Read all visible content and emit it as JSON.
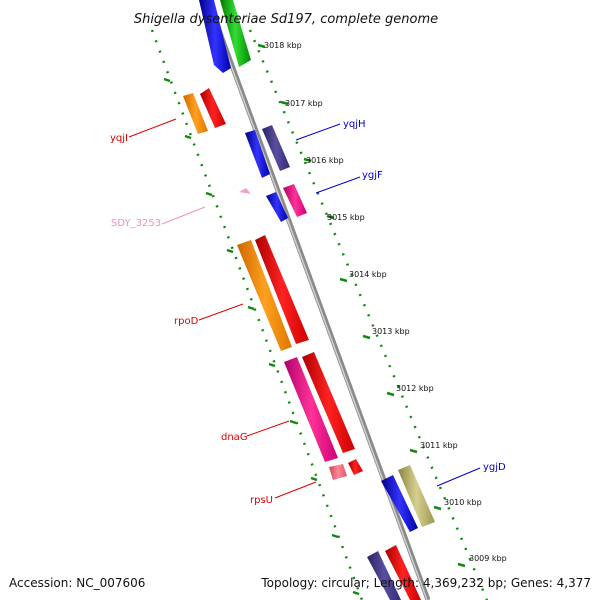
{
  "title": "Shigella dysenteriae Sd197, complete genome",
  "footer": {
    "accession": "Accession: NC_007606",
    "topology": "Topology: circular; Length: 4,369,232 bp; Genes: 4,377"
  },
  "kbp_labels": [
    "3018 kbp",
    "3017 kbp",
    "3016 kbp",
    "3015 kbp",
    "3014 kbp",
    "3013 kbp",
    "3012 kbp",
    "3011 kbp",
    "3010 kbp",
    "3009 kbp"
  ],
  "genes": [
    {
      "name": "yqjI",
      "color": "#dd0000"
    },
    {
      "name": "yqjH",
      "color": "#0000cc"
    },
    {
      "name": "ygjF",
      "color": "#0000cc"
    },
    {
      "name": "SDY_3253",
      "color": "#f090c0"
    },
    {
      "name": "rpoD",
      "color": "#dd0000"
    },
    {
      "name": "dnaG",
      "color": "#dd0000"
    },
    {
      "name": "rpsU",
      "color": "#dd0000"
    },
    {
      "name": "ygjD",
      "color": "#0000cc"
    }
  ]
}
